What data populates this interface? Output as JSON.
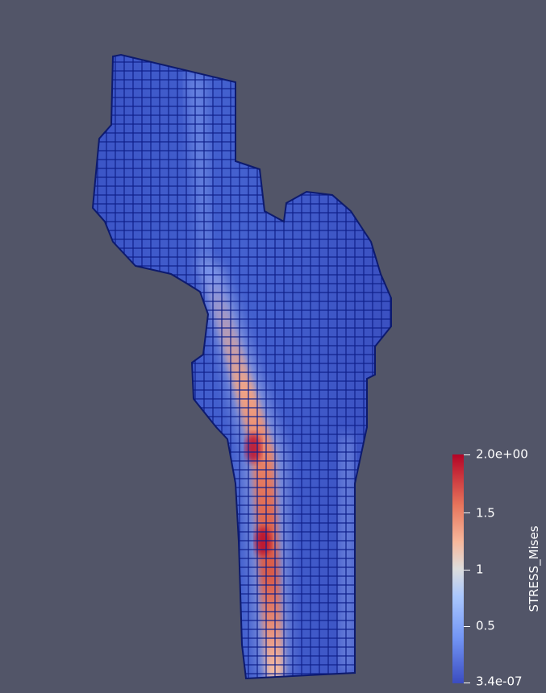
{
  "scalar_bar": {
    "title": "STRESS_Mises",
    "labels": [
      "2.0e+00",
      "1.5",
      "1",
      "0.5",
      "3.4e-07"
    ]
  },
  "colors": {
    "background": "#525568",
    "low": "#3b4cc0",
    "mid": "#dddddd",
    "high": "#b40426",
    "edge": "#0f1f8a"
  }
}
